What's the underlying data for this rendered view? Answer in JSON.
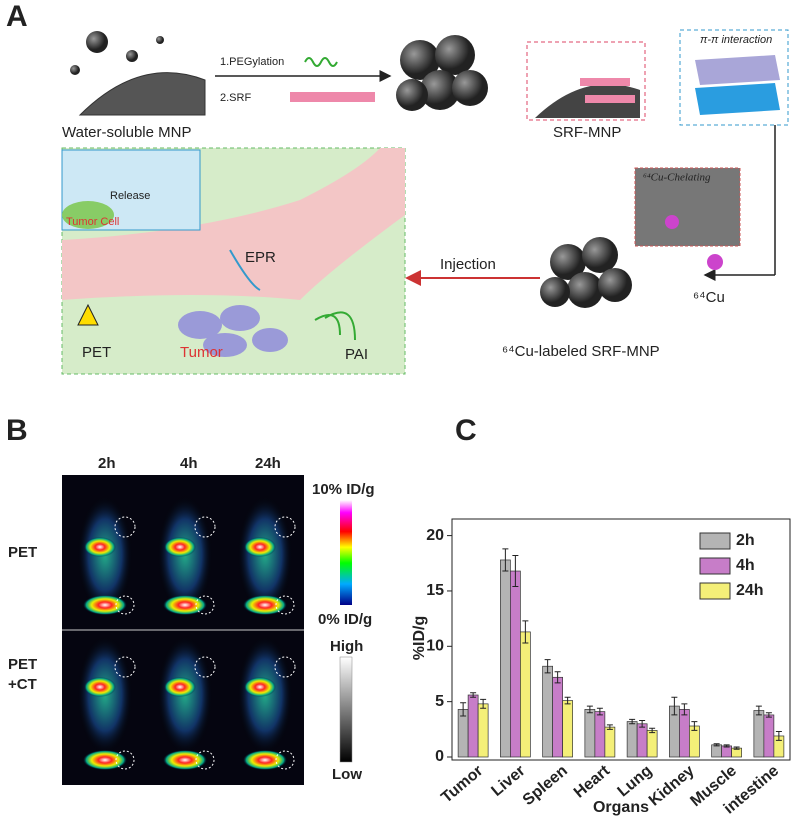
{
  "panel_labels": [
    "A",
    "B",
    "C"
  ],
  "panel_a": {
    "water_soluble": "Water-soluble MNP",
    "step1": "1.PEGylation",
    "step2": "2.SRF",
    "srf_mnp": "SRF-MNP",
    "pi": "π-π interaction",
    "chelating": "⁶⁴Cu-Chelating",
    "release": "Release",
    "tumor_cell": "Tumor Cell",
    "epr": "EPR",
    "injection": "Injection",
    "pet": "PET",
    "tumor": "Tumor",
    "pai": "PAI",
    "cu": "⁶⁴Cu",
    "labeled": "⁶⁴Cu-labeled SRF-MNP"
  },
  "panel_b": {
    "times": [
      "2h",
      "4h",
      "24h"
    ],
    "row1": "PET",
    "row2": [
      "PET",
      "+CT"
    ],
    "cbar_top": "10% ID/g",
    "cbar_bottom": "0% ID/g",
    "gray_top": "High",
    "gray_bottom": "Low"
  },
  "chart_data": {
    "type": "bar",
    "xlabel": "Organs",
    "ylabel": "%ID/g",
    "categories": [
      "Tumor",
      "Liver",
      "Spleen",
      "Heart",
      "Lung",
      "Kidney",
      "Muscle",
      "intestine"
    ],
    "series": [
      {
        "name": "2h",
        "color": "#b4b4b4",
        "values": [
          4.3,
          17.8,
          8.2,
          4.3,
          3.2,
          4.6,
          1.1,
          4.2
        ],
        "errors": [
          0.6,
          1.0,
          0.6,
          0.3,
          0.2,
          0.8,
          0.1,
          0.4
        ]
      },
      {
        "name": "4h",
        "color": "#c77dc8",
        "values": [
          5.6,
          16.8,
          7.2,
          4.1,
          3.0,
          4.3,
          1.0,
          3.8
        ],
        "errors": [
          0.2,
          1.4,
          0.5,
          0.3,
          0.3,
          0.5,
          0.1,
          0.2
        ]
      },
      {
        "name": "24h",
        "color": "#f4ef78",
        "values": [
          4.8,
          11.3,
          5.1,
          2.7,
          2.4,
          2.8,
          0.8,
          1.9
        ],
        "errors": [
          0.4,
          1.0,
          0.3,
          0.2,
          0.2,
          0.4,
          0.1,
          0.4
        ]
      }
    ],
    "ylim": [
      0,
      21.5
    ],
    "yticks": [
      0,
      5,
      10,
      15,
      20
    ],
    "grid": false,
    "legend": "upper-right"
  }
}
